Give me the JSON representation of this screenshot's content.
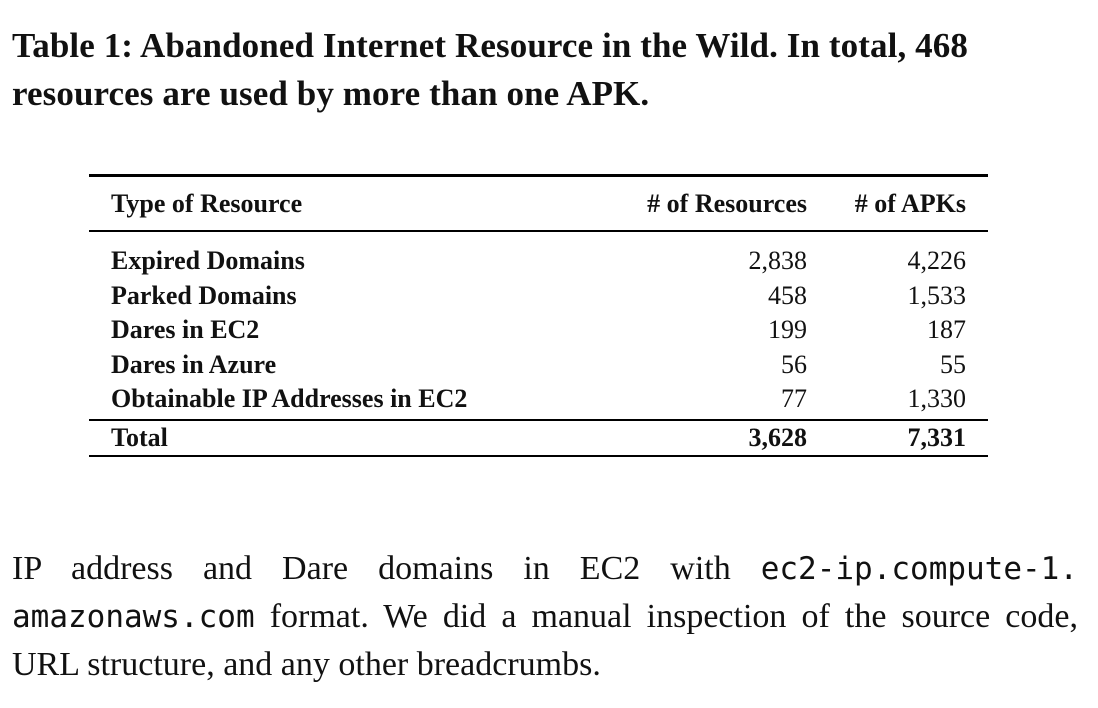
{
  "caption": "Table 1: Abandoned Internet Resource in the Wild. In total, 468 resources are used by more than one APK.",
  "table": {
    "headers": [
      "Type of Resource",
      "# of Resources",
      "# of APKs"
    ],
    "rows": [
      [
        "Expired Domains",
        "2,838",
        "4,226"
      ],
      [
        "Parked Domains",
        "458",
        "1,533"
      ],
      [
        "Dares in EC2",
        "199",
        "187"
      ],
      [
        "Dares in Azure",
        "56",
        "55"
      ],
      [
        "Obtainable IP Addresses in EC2",
        "77",
        "1,330"
      ]
    ],
    "total": [
      "Total",
      "3,628",
      "7,331"
    ]
  },
  "body": {
    "text_before": "IP address and Dare domains in EC2 with ",
    "code_1": "ec2-ip.compute-1.",
    "code_2": "amazonaws.com",
    "text_after": " format. We did a manual inspection of the source code, URL structure, and any other breadcrumbs."
  }
}
